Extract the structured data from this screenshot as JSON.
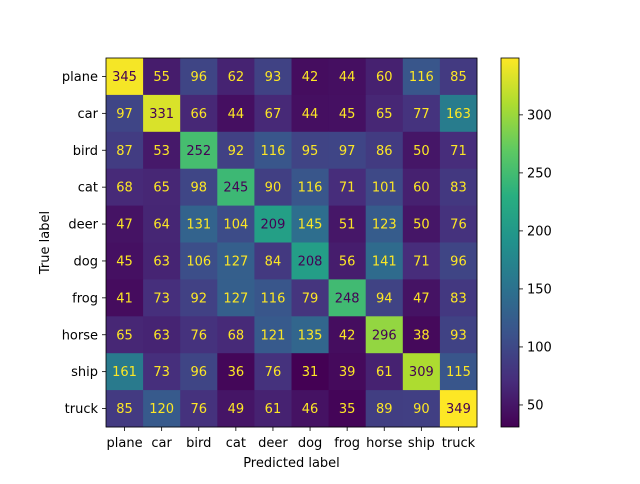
{
  "chart_data": {
    "type": "heatmap",
    "x_categories": [
      "plane",
      "car",
      "bird",
      "cat",
      "deer",
      "dog",
      "frog",
      "horse",
      "ship",
      "truck"
    ],
    "y_categories": [
      "plane",
      "car",
      "bird",
      "cat",
      "deer",
      "dog",
      "frog",
      "horse",
      "ship",
      "truck"
    ],
    "values": [
      [
        345,
        55,
        96,
        62,
        93,
        42,
        44,
        60,
        116,
        85
      ],
      [
        97,
        331,
        66,
        44,
        67,
        44,
        45,
        65,
        77,
        163
      ],
      [
        87,
        53,
        252,
        92,
        116,
        95,
        97,
        86,
        50,
        71
      ],
      [
        68,
        65,
        98,
        245,
        90,
        116,
        71,
        101,
        60,
        83
      ],
      [
        47,
        64,
        131,
        104,
        209,
        145,
        51,
        123,
        50,
        76
      ],
      [
        45,
        63,
        106,
        127,
        84,
        208,
        56,
        141,
        71,
        96
      ],
      [
        41,
        73,
        92,
        127,
        116,
        79,
        248,
        94,
        47,
        83
      ],
      [
        65,
        63,
        76,
        68,
        121,
        135,
        42,
        296,
        38,
        93
      ],
      [
        161,
        73,
        96,
        36,
        76,
        31,
        39,
        61,
        309,
        115
      ],
      [
        85,
        120,
        76,
        49,
        61,
        46,
        35,
        89,
        90,
        349
      ]
    ],
    "xlabel": "Predicted label",
    "ylabel": "True label",
    "colormap": "viridis",
    "value_range": [
      31,
      349
    ],
    "colorbar_ticks": [
      "50",
      "100",
      "150",
      "200",
      "250",
      "300"
    ]
  }
}
